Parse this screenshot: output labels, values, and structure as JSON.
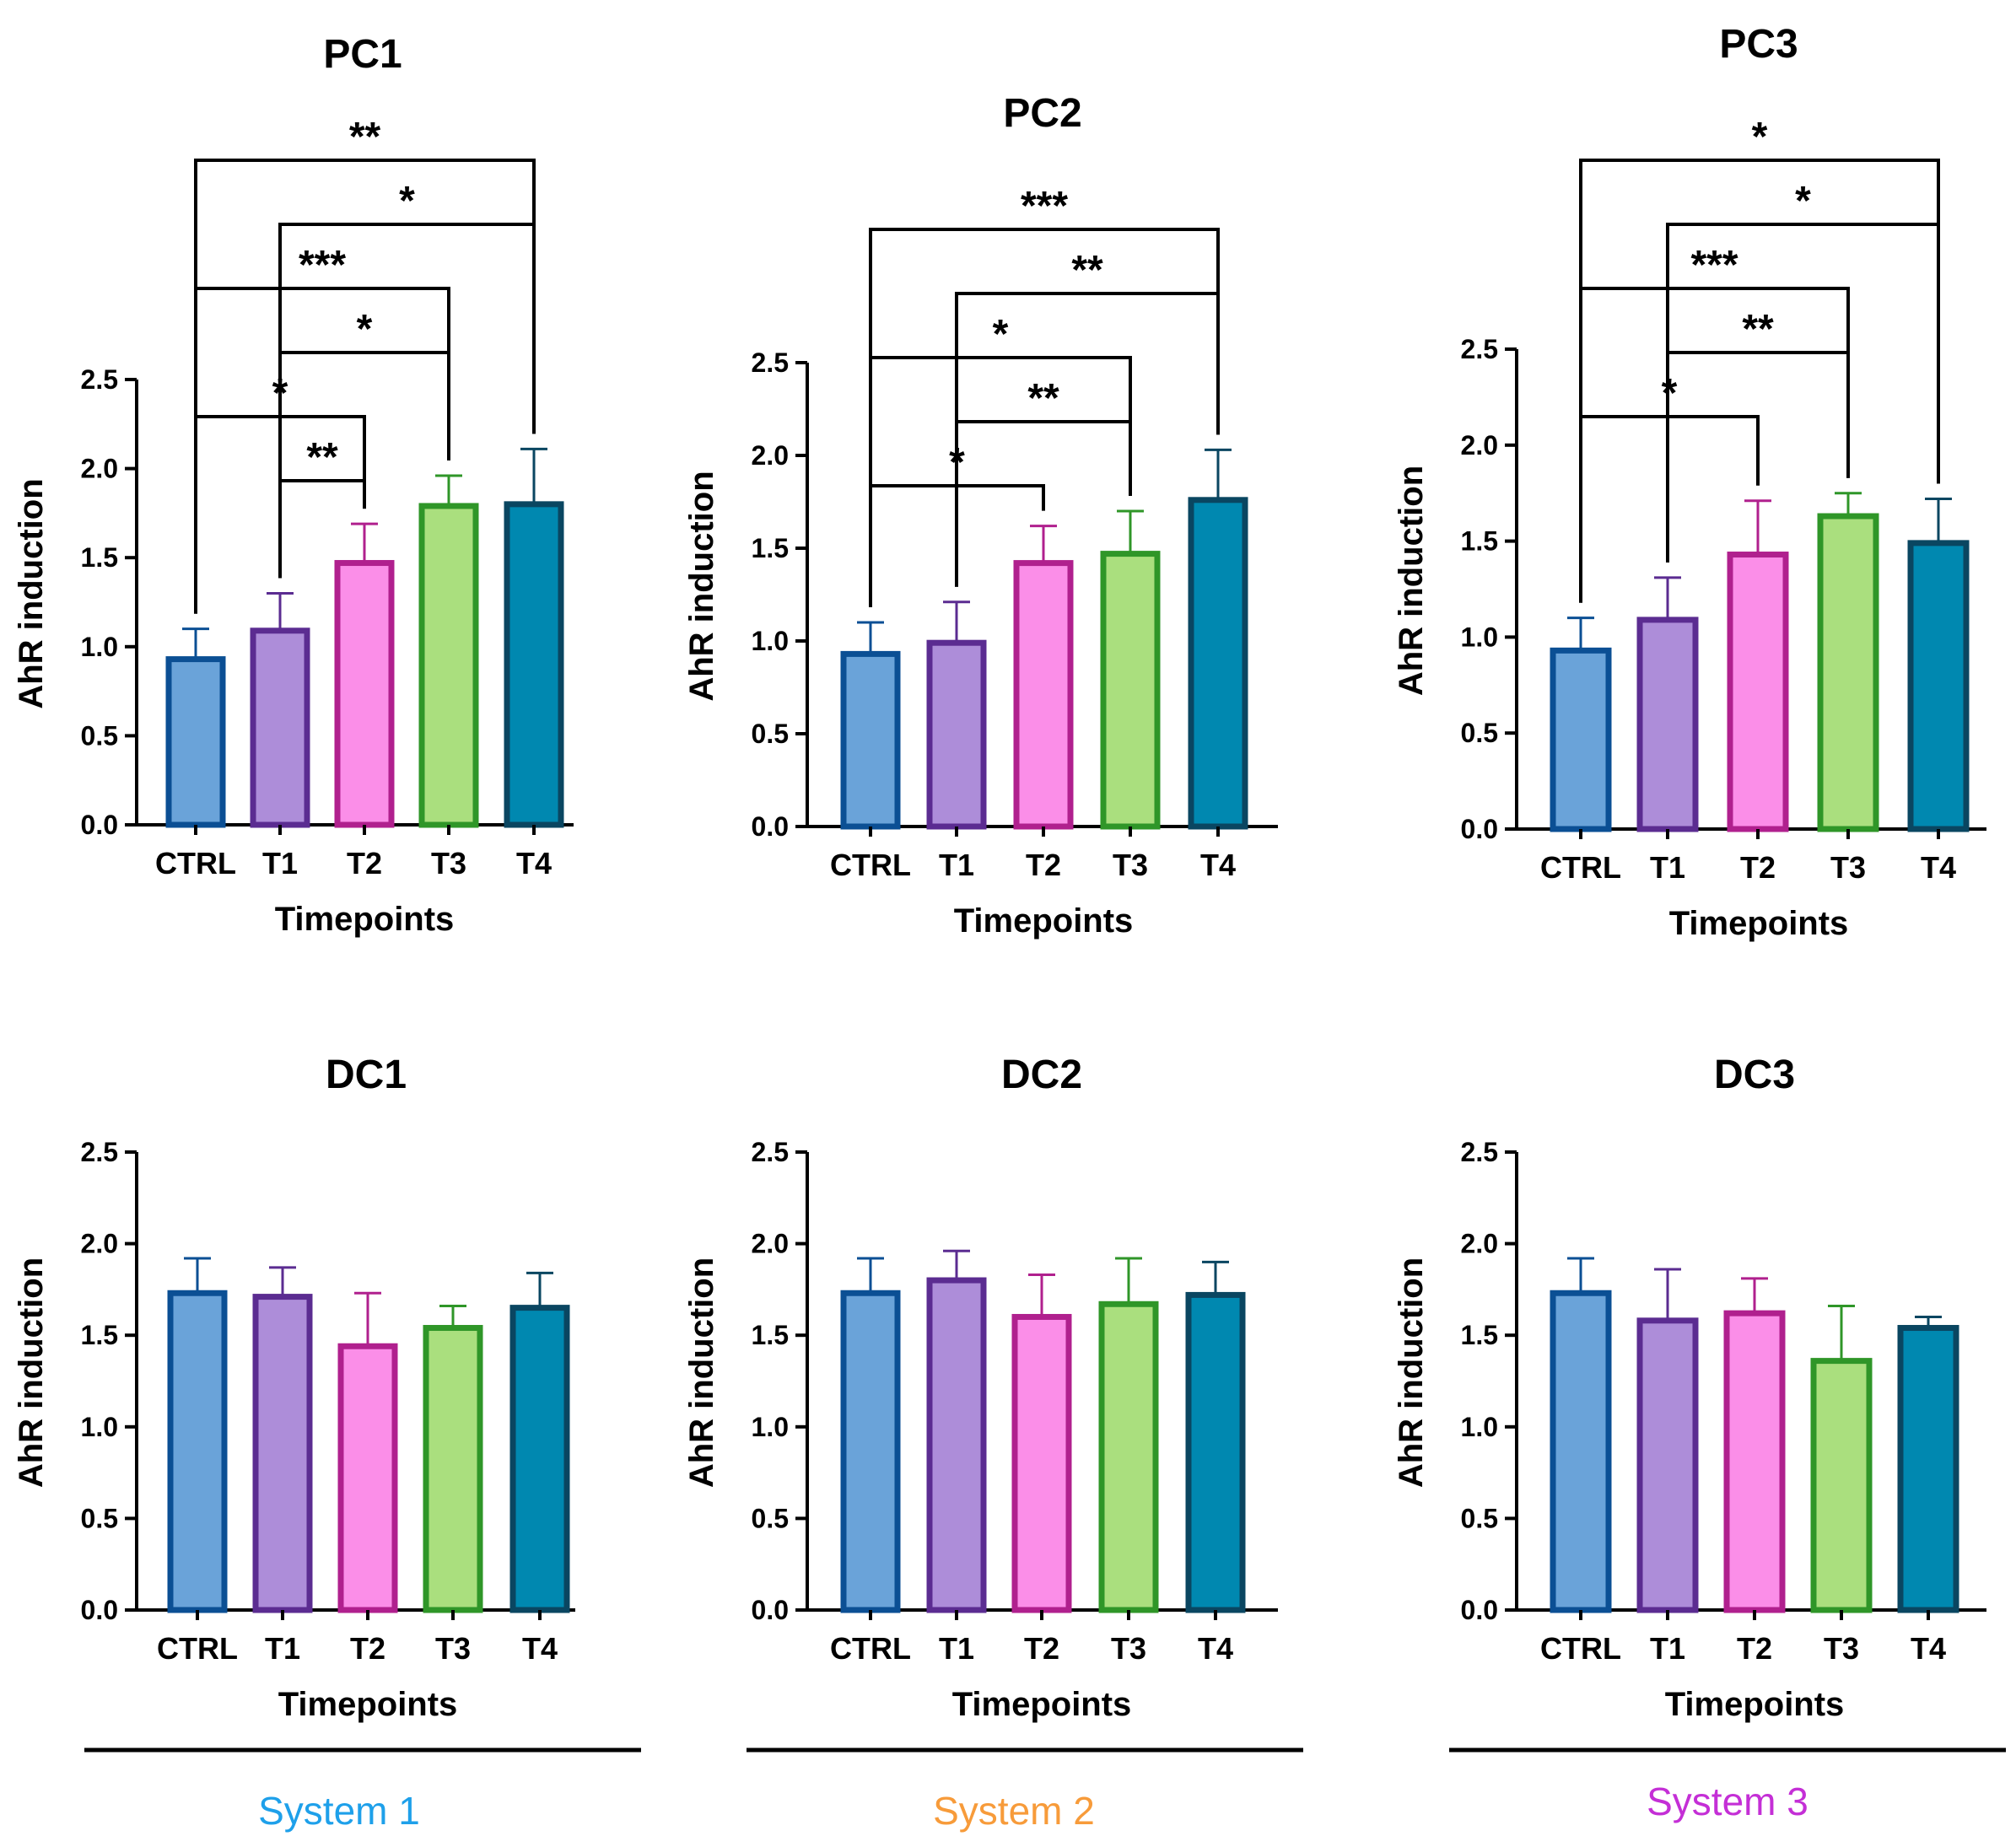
{
  "figure": {
    "systems": [
      {
        "label": "System 1",
        "color": "#1ea0ea"
      },
      {
        "label": "System 2",
        "color": "#f79b3a"
      },
      {
        "label": "System 3",
        "color": "#c42fd6"
      }
    ]
  },
  "colors": {
    "fills": [
      "#6aa3d9",
      "#ad8dd9",
      "#fb8ee8",
      "#aadf7e",
      "#0088b0"
    ],
    "strokes": [
      "#0b4f94",
      "#5b2c91",
      "#b0208e",
      "#2f9628",
      "#0a4661"
    ]
  },
  "chart_data": [
    {
      "type": "bar",
      "title": "PC1",
      "categories": [
        "CTRL",
        "T1",
        "T2",
        "T3",
        "T4"
      ],
      "values": [
        0.93,
        1.09,
        1.47,
        1.79,
        1.8
      ],
      "errors": [
        0.17,
        0.21,
        0.22,
        0.17,
        0.31
      ],
      "ylim": [
        0,
        2.5
      ],
      "yticks": [
        "0.0",
        "0.5",
        "1.0",
        "1.5",
        "2.0",
        "2.5"
      ],
      "xlabel": "Timepoints",
      "ylabel": "AhR induction",
      "significance": [
        {
          "from": "T1",
          "to": "T2",
          "label": "**"
        },
        {
          "from": "CTRL",
          "to": "T2",
          "label": "*"
        },
        {
          "from": "T1",
          "to": "T3",
          "label": "*"
        },
        {
          "from": "CTRL",
          "to": "T3",
          "label": "***"
        },
        {
          "from": "T1",
          "to": "T4",
          "label": "*"
        },
        {
          "from": "CTRL",
          "to": "T4",
          "label": "**"
        }
      ]
    },
    {
      "type": "bar",
      "title": "PC2",
      "categories": [
        "CTRL",
        "T1",
        "T2",
        "T3",
        "T4"
      ],
      "values": [
        0.93,
        0.99,
        1.42,
        1.47,
        1.76
      ],
      "errors": [
        0.17,
        0.22,
        0.2,
        0.23,
        0.27
      ],
      "ylim": [
        0,
        2.5
      ],
      "yticks": [
        "0.0",
        "0.5",
        "1.0",
        "1.5",
        "2.0",
        "2.5"
      ],
      "xlabel": "Timepoints",
      "ylabel": "AhR induction",
      "significance": [
        {
          "from": "CTRL",
          "to": "T2",
          "label": "*"
        },
        {
          "from": "T1",
          "to": "T3",
          "label": "**"
        },
        {
          "from": "CTRL",
          "to": "T3",
          "label": "*"
        },
        {
          "from": "T1",
          "to": "T4",
          "label": "**"
        },
        {
          "from": "CTRL",
          "to": "T4",
          "label": "***"
        }
      ]
    },
    {
      "type": "bar",
      "title": "PC3",
      "categories": [
        "CTRL",
        "T1",
        "T2",
        "T3",
        "T4"
      ],
      "values": [
        0.93,
        1.09,
        1.43,
        1.63,
        1.49
      ],
      "errors": [
        0.17,
        0.22,
        0.28,
        0.12,
        0.23
      ],
      "ylim": [
        0,
        2.5
      ],
      "yticks": [
        "0.0",
        "0.5",
        "1.0",
        "1.5",
        "2.0",
        "2.5"
      ],
      "xlabel": "Timepoints",
      "ylabel": "AhR induction",
      "significance": [
        {
          "from": "CTRL",
          "to": "T2",
          "label": "*"
        },
        {
          "from": "T1",
          "to": "T3",
          "label": "**"
        },
        {
          "from": "CTRL",
          "to": "T3",
          "label": "***"
        },
        {
          "from": "T1",
          "to": "T4",
          "label": "*"
        },
        {
          "from": "CTRL",
          "to": "T4",
          "label": "*"
        }
      ]
    },
    {
      "type": "bar",
      "title": "DC1",
      "categories": [
        "CTRL",
        "T1",
        "T2",
        "T3",
        "T4"
      ],
      "values": [
        1.73,
        1.71,
        1.44,
        1.54,
        1.65
      ],
      "errors": [
        0.19,
        0.16,
        0.29,
        0.12,
        0.19
      ],
      "ylim": [
        0,
        2.5
      ],
      "yticks": [
        "0.0",
        "0.5",
        "1.0",
        "1.5",
        "2.0",
        "2.5"
      ],
      "xlabel": "Timepoints",
      "ylabel": "AhR induction",
      "significance": []
    },
    {
      "type": "bar",
      "title": "DC2",
      "categories": [
        "CTRL",
        "T1",
        "T2",
        "T3",
        "T4"
      ],
      "values": [
        1.73,
        1.8,
        1.6,
        1.67,
        1.72
      ],
      "errors": [
        0.19,
        0.16,
        0.23,
        0.25,
        0.18
      ],
      "ylim": [
        0,
        2.5
      ],
      "yticks": [
        "0.0",
        "0.5",
        "1.0",
        "1.5",
        "2.0",
        "2.5"
      ],
      "xlabel": "Timepoints",
      "ylabel": "AhR induction",
      "significance": []
    },
    {
      "type": "bar",
      "title": "DC3",
      "categories": [
        "CTRL",
        "T1",
        "T2",
        "T3",
        "T4"
      ],
      "values": [
        1.73,
        1.58,
        1.62,
        1.36,
        1.54
      ],
      "errors": [
        0.19,
        0.28,
        0.19,
        0.3,
        0.06
      ],
      "ylim": [
        0,
        2.5
      ],
      "yticks": [
        "0.0",
        "0.5",
        "1.0",
        "1.5",
        "2.0",
        "2.5"
      ],
      "xlabel": "Timepoints",
      "ylabel": "AhR induction",
      "significance": []
    }
  ]
}
